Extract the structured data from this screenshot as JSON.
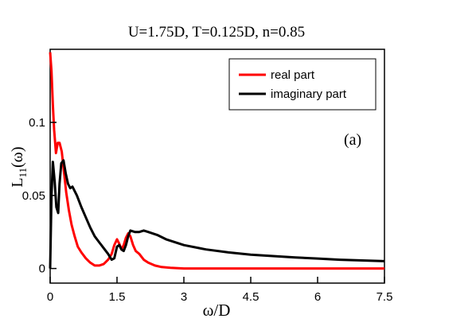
{
  "chart_data": {
    "type": "line",
    "title": "U=1.75D, T=0.125D, n=0.85",
    "xlabel": "ω/D",
    "ylabel_main": "L",
    "ylabel_sub": "11",
    "ylabel_arg": "(ω)",
    "annotation": "(a)",
    "xlim": [
      0,
      7.5
    ],
    "ylim": [
      -0.01,
      0.15
    ],
    "xticks": [
      0,
      1.5,
      3,
      4.5,
      6,
      7.5
    ],
    "xtick_labels": [
      "0",
      "1.5",
      "3",
      "4.5",
      "6",
      "7.5"
    ],
    "yticks": [
      0,
      0.05,
      0.1
    ],
    "ytick_labels": [
      "0",
      "0.05",
      "0.1"
    ],
    "grid": false,
    "legend_position": "top-right",
    "series": [
      {
        "name": "real part",
        "color": "#ff0000",
        "x": [
          0.0,
          0.03,
          0.06,
          0.09,
          0.13,
          0.17,
          0.21,
          0.26,
          0.31,
          0.36,
          0.42,
          0.48,
          0.55,
          0.62,
          0.7,
          0.8,
          0.9,
          1.0,
          1.1,
          1.2,
          1.3,
          1.38,
          1.44,
          1.5,
          1.55,
          1.6,
          1.65,
          1.7,
          1.75,
          1.8,
          1.86,
          1.92,
          2.0,
          2.1,
          2.2,
          2.35,
          2.5,
          2.7,
          3.0,
          3.5,
          4.5,
          6.0,
          7.5
        ],
        "y": [
          0.148,
          0.135,
          0.112,
          0.095,
          0.079,
          0.086,
          0.086,
          0.08,
          0.066,
          0.052,
          0.04,
          0.03,
          0.022,
          0.015,
          0.011,
          0.007,
          0.004,
          0.002,
          0.002,
          0.003,
          0.006,
          0.01,
          0.016,
          0.02,
          0.017,
          0.013,
          0.016,
          0.021,
          0.024,
          0.022,
          0.016,
          0.012,
          0.01,
          0.006,
          0.004,
          0.002,
          0.001,
          0.0005,
          0.0,
          0.0,
          0.0,
          0.0,
          0.0
        ]
      },
      {
        "name": "imaginary part",
        "color": "#000000",
        "x": [
          0.0,
          0.03,
          0.06,
          0.1,
          0.14,
          0.18,
          0.21,
          0.25,
          0.3,
          0.35,
          0.4,
          0.45,
          0.5,
          0.6,
          0.7,
          0.8,
          0.9,
          1.0,
          1.1,
          1.2,
          1.3,
          1.38,
          1.44,
          1.5,
          1.55,
          1.6,
          1.65,
          1.7,
          1.75,
          1.8,
          1.9,
          2.0,
          2.1,
          2.2,
          2.4,
          2.6,
          2.8,
          3.0,
          3.5,
          4.0,
          4.5,
          5.0,
          5.5,
          6.0,
          6.5,
          7.0,
          7.5
        ],
        "y": [
          0.0,
          0.05,
          0.073,
          0.06,
          0.042,
          0.038,
          0.058,
          0.072,
          0.074,
          0.065,
          0.058,
          0.055,
          0.056,
          0.05,
          0.042,
          0.035,
          0.028,
          0.022,
          0.018,
          0.014,
          0.01,
          0.006,
          0.007,
          0.015,
          0.016,
          0.013,
          0.012,
          0.016,
          0.022,
          0.026,
          0.025,
          0.025,
          0.026,
          0.025,
          0.023,
          0.02,
          0.018,
          0.016,
          0.013,
          0.011,
          0.0095,
          0.0085,
          0.0075,
          0.0068,
          0.006,
          0.0055,
          0.005
        ]
      }
    ]
  }
}
